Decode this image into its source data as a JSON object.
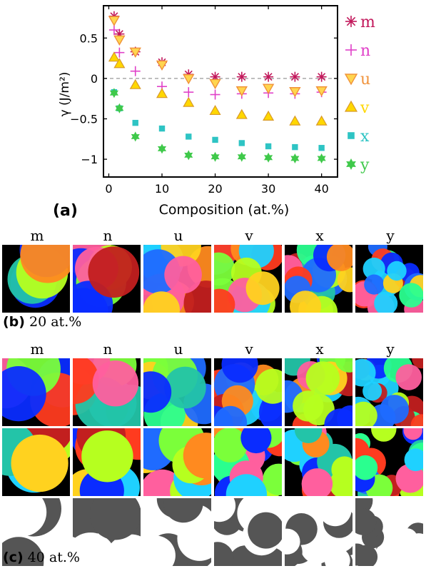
{
  "chart_data": {
    "type": "scatter",
    "panel_label": "(a)",
    "xlabel": "Composition (at.%)",
    "ylabel": "γ (J/m²)",
    "xlim": [
      -1,
      43
    ],
    "ylim": [
      -1.22,
      0.9
    ],
    "xticks": [
      0,
      10,
      20,
      30,
      40
    ],
    "yticks": [
      0.5,
      0,
      -0.5,
      -1
    ],
    "ytick_labels": [
      "0.5",
      "0",
      "−0.5",
      "−1"
    ],
    "zero_line": true,
    "legend_placement": "right-outside",
    "x": [
      1,
      2,
      5,
      10,
      15,
      20,
      25,
      30,
      35,
      40
    ],
    "series": [
      {
        "name": "m",
        "marker": "asterisk",
        "color": "#c2185b",
        "values": [
          0.77,
          0.55,
          0.33,
          0.2,
          0.05,
          0.02,
          0.02,
          0.02,
          0.02,
          0.02
        ]
      },
      {
        "name": "n",
        "marker": "plus",
        "color": "#e040c8",
        "values": [
          0.6,
          0.32,
          0.09,
          -0.1,
          -0.17,
          -0.2,
          -0.19,
          -0.18,
          -0.19,
          -0.17
        ]
      },
      {
        "name": "u",
        "marker": "triangle-down",
        "color": "#f0923a",
        "values": [
          0.72,
          0.48,
          0.33,
          0.17,
          0.0,
          -0.06,
          -0.15,
          -0.12,
          -0.16,
          -0.15
        ]
      },
      {
        "name": "v",
        "marker": "triangle-up",
        "color": "#ffd700",
        "values": [
          0.26,
          0.18,
          -0.08,
          -0.19,
          -0.3,
          -0.4,
          -0.45,
          -0.47,
          -0.53,
          -0.53
        ]
      },
      {
        "name": "x",
        "marker": "square",
        "color": "#2ec4c4",
        "values": [
          -0.17,
          -0.37,
          -0.55,
          -0.62,
          -0.72,
          -0.76,
          -0.8,
          -0.84,
          -0.85,
          -0.86
        ]
      },
      {
        "name": "y",
        "marker": "star",
        "color": "#3fc94a",
        "values": [
          -0.18,
          -0.37,
          -0.72,
          -0.87,
          -0.95,
          -0.97,
          -0.97,
          -0.98,
          -0.99,
          -0.99
        ]
      }
    ]
  },
  "columns": [
    "m",
    "n",
    "u",
    "v",
    "x",
    "y"
  ],
  "captions": {
    "b_label": "(b)",
    "b_text": " 20 at.%",
    "c_label": "(c)",
    "c_text": " 40 at.%"
  }
}
